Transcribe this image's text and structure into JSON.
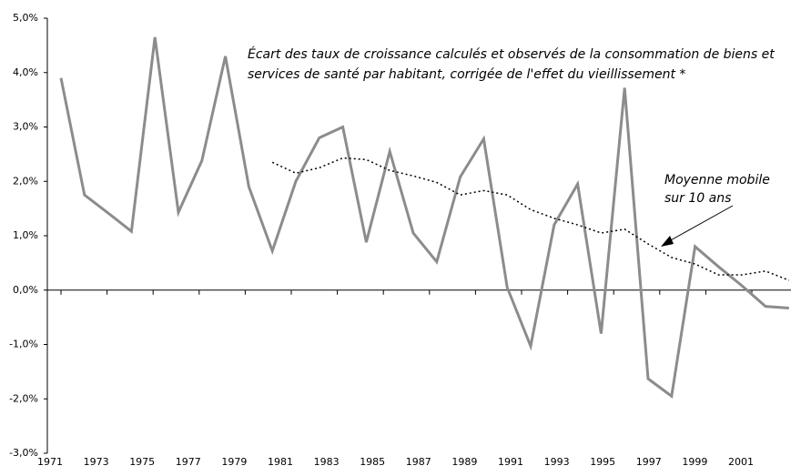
{
  "chart_data": {
    "type": "line",
    "annotations": [
      "Écart des taux de croissance calculés et observés de la consommation de biens et",
      "services de santé par habitant, corrigée de l'effet du vieillissement *",
      "Moyenne mobile",
      "sur 10 ans"
    ],
    "categories": [
      "1971",
      null,
      "1973",
      null,
      "1975",
      null,
      "1977",
      null,
      "1979",
      null,
      "1981",
      null,
      "1983",
      null,
      "1985",
      null,
      "1987",
      null,
      "1989",
      null,
      "1991",
      null,
      "1993",
      null,
      "1995",
      null,
      "1997",
      null,
      "1999",
      null,
      "2001",
      null
    ],
    "series": [
      {
        "color": "#8c8c8c",
        "style": "solid",
        "values": [
          3.9,
          1.75,
          1.42,
          1.08,
          4.65,
          1.43,
          2.38,
          4.3,
          1.9,
          0.72,
          2.0,
          2.8,
          3.0,
          0.88,
          2.55,
          1.05,
          0.52,
          2.08,
          2.78,
          0.05,
          -1.03,
          1.2,
          1.95,
          -0.8,
          3.72,
          -1.63,
          -1.95,
          0.8,
          0.43,
          0.08,
          -0.3,
          -0.33
        ]
      },
      {
        "color": "#000000",
        "style": "dotted",
        "values": [
          null,
          null,
          null,
          null,
          null,
          null,
          null,
          null,
          null,
          2.35,
          2.15,
          2.25,
          2.43,
          2.4,
          2.2,
          2.1,
          1.98,
          1.75,
          1.83,
          1.75,
          1.48,
          1.32,
          1.2,
          1.05,
          1.12,
          0.85,
          0.6,
          0.48,
          0.28,
          0.28,
          0.35,
          0.18
        ]
      }
    ],
    "ylim": [
      -3,
      5
    ],
    "yticks": [
      {
        "value": -3,
        "label": "-3,0%"
      },
      {
        "value": -2,
        "label": "-2,0%"
      },
      {
        "value": -1,
        "label": "-1,0%"
      },
      {
        "value": 0,
        "label": "0,0%"
      },
      {
        "value": 1,
        "label": "1,0%"
      },
      {
        "value": 2,
        "label": "2,0%"
      },
      {
        "value": 3,
        "label": "3,0%"
      },
      {
        "value": 4,
        "label": "4,0%"
      },
      {
        "value": 5,
        "label": "5,0%"
      }
    ],
    "grid": false
  }
}
